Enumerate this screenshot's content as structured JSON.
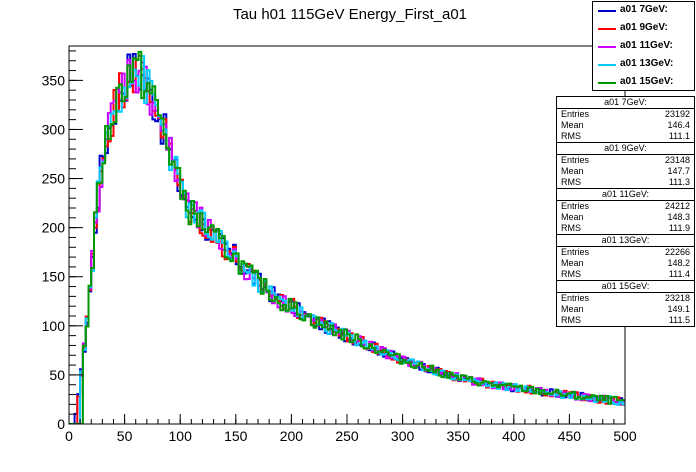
{
  "chart_data": {
    "type": "line",
    "title": "Tau h01 115GeV Energy_First_a01",
    "xlim": [
      0,
      500
    ],
    "ylim": [
      0,
      385
    ],
    "xticks": [
      "0",
      "50",
      "100",
      "150",
      "200",
      "250",
      "300",
      "350",
      "400",
      "450",
      "500"
    ],
    "yticks": [
      "0",
      "50",
      "100",
      "150",
      "200",
      "250",
      "300",
      "350"
    ],
    "legend_position": "top-right",
    "series": [
      {
        "name": "a01 7GeV:",
        "color": "#0000cc",
        "stats": {
          "Entries": "23192",
          "Mean": "146.4",
          "RMS": "111.1"
        }
      },
      {
        "name": "a01 9GeV:",
        "color": "#ff0000",
        "stats": {
          "Entries": "23148",
          "Mean": "147.7",
          "RMS": "111.3"
        }
      },
      {
        "name": "a01 11GeV:",
        "color": "#cc00ff",
        "stats": {
          "Entries": "24212",
          "Mean": "148.3",
          "RMS": "111.9"
        }
      },
      {
        "name": "a01 13GeV:",
        "color": "#00ccff",
        "stats": {
          "Entries": "22266",
          "Mean": "148.2",
          "RMS": "111.4"
        }
      },
      {
        "name": "a01 15GeV:",
        "color": "#009900",
        "stats": {
          "Entries": "23218",
          "Mean": "149.1",
          "RMS": "111.5"
        }
      }
    ],
    "shape": {
      "x": [
        0,
        5,
        10,
        15,
        20,
        25,
        30,
        40,
        50,
        55,
        60,
        65,
        70,
        80,
        90,
        100,
        110,
        120,
        130,
        140,
        150,
        160,
        170,
        180,
        190,
        200,
        220,
        240,
        260,
        280,
        300,
        320,
        340,
        360,
        380,
        400,
        420,
        440,
        460,
        480,
        500
      ],
      "y": [
        0,
        5,
        40,
        90,
        150,
        220,
        270,
        320,
        350,
        360,
        360,
        355,
        345,
        320,
        280,
        240,
        215,
        205,
        190,
        180,
        170,
        155,
        145,
        135,
        125,
        120,
        105,
        95,
        85,
        75,
        65,
        58,
        50,
        45,
        40,
        37,
        34,
        31,
        28,
        25,
        23
      ]
    },
    "stat_labels": {
      "entries": "Entries",
      "mean": "Mean",
      "rms": "RMS"
    }
  }
}
